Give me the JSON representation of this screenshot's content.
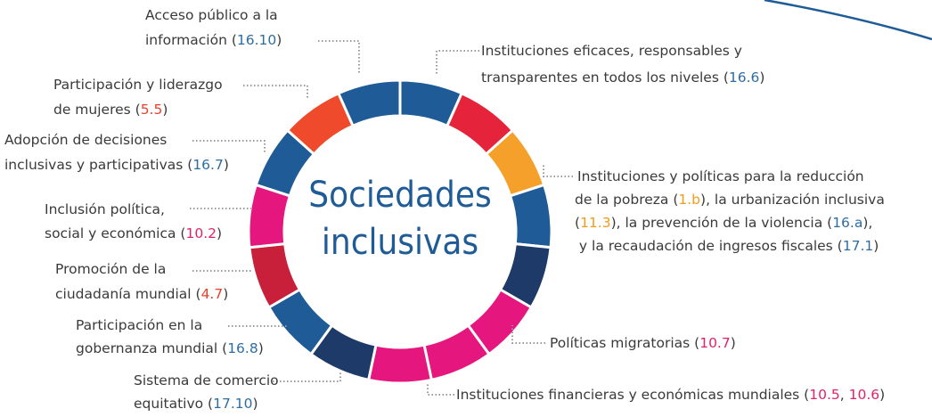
{
  "title": [
    "Sociedades",
    "inclusivas"
  ],
  "labels": [
    {
      "lines": [
        [
          "Acceso público a la"
        ],
        [
          "información (",
          "16.10",
          ")"
        ]
      ]
    },
    {
      "lines": [
        [
          "Instituciones eficaces, responsables y"
        ],
        [
          "transparentes en todos los niveles (",
          "16.6",
          ")"
        ]
      ]
    },
    {
      "lines": [
        [
          "Participación y liderazgo"
        ],
        [
          "de mujeres (",
          "5.5",
          ")"
        ]
      ]
    },
    {
      "lines": [
        [
          "Adopción de decisiones"
        ],
        [
          "inclusivas y participativas (",
          "16.7",
          ")"
        ]
      ]
    },
    {
      "lines": [
        [
          "Instituciones y políticas para la reducción"
        ],
        [
          "de la pobreza (",
          "1.b",
          "), la urbanización inclusiva"
        ],
        [
          "(",
          "11.3",
          "), la prevención de la violencia (",
          "16.a",
          "),"
        ],
        [
          " y la recaudación de ingresos fiscales (",
          "17.1",
          ")"
        ]
      ]
    },
    {
      "lines": [
        [
          "Inclusión política,"
        ],
        [
          "social y económica (",
          "10.2",
          ")"
        ]
      ]
    },
    {
      "lines": [
        [
          "Promoción de la"
        ],
        [
          "ciudadanía mundial (",
          "4.7",
          ")"
        ]
      ]
    },
    {
      "lines": [
        [
          "Participación en la"
        ],
        [
          "gobernanza mundial (",
          "16.8",
          ")"
        ]
      ]
    },
    {
      "lines": [
        [
          "Políticas migratorias (",
          "10.7",
          ")"
        ]
      ]
    },
    {
      "lines": [
        [
          "Sistema de comercio"
        ],
        [
          "equitativo (",
          "17.10",
          ")"
        ]
      ]
    },
    {
      "lines": [
        [
          "Instituciones financieras y económicas mundiales (",
          "10.5",
          ", ",
          "10.6",
          ")"
        ]
      ]
    }
  ]
}
